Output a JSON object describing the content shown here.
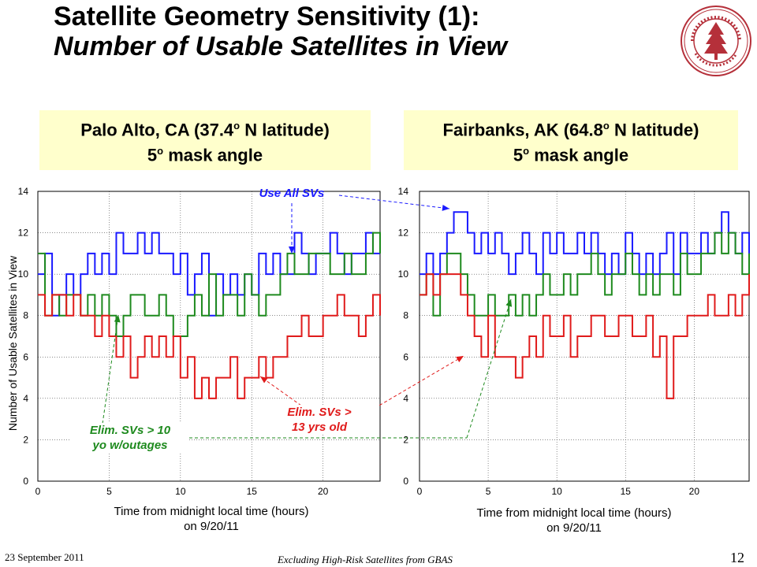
{
  "title": {
    "line1": "Satellite Geometry Sensitivity (1):",
    "line2": "Number of Usable Satellites in View"
  },
  "note_left": {
    "line1_pre": "Palo Alto, CA (37.4",
    "line1_sup": "o",
    "line1_post": " N latitude)",
    "line2_pre": "5",
    "line2_sup": "o",
    "line2_post": " mask angle"
  },
  "note_right": {
    "line1_pre": "Fairbanks, AK (64.8",
    "line1_sup": "o",
    "line1_post": " N latitude)",
    "line2_pre": "5",
    "line2_sup": "o",
    "line2_post": " mask angle"
  },
  "ylabel": "Number of Usable Satellites in View",
  "xlabel_left": {
    "line1": "Time from midnight local time (hours)",
    "line2": "on 9/20/11"
  },
  "xlabel_right": {
    "line1": "Time from midnight local time (hours)",
    "line2": "on 9/20/11"
  },
  "callouts": {
    "all": "Use All SVs",
    "green_line1": "Elim. SVs > 10",
    "green_line2": "yo w/outages",
    "red_line1": "Elim. SVs >",
    "red_line2": "13 yrs old"
  },
  "footer": {
    "date": "23 September 2011",
    "title": "Excluding High-Risk Satellites from GBAS",
    "page": "12"
  },
  "colors": {
    "all": "#1a1aff",
    "green": "#1e8a1e",
    "red": "#e01b1b",
    "note_bg": "#ffffcc",
    "seal": "#b5303a"
  },
  "chart_data": [
    {
      "type": "line",
      "title": "",
      "xlabel": "Time from midnight local time (hours) on 9/20/11",
      "ylabel": "Number of Usable Satellites in View",
      "xlim": [
        0,
        24
      ],
      "ylim": [
        0,
        14
      ],
      "xticks": [
        0,
        5,
        10,
        15,
        20
      ],
      "yticks": [
        0,
        2,
        4,
        6,
        8,
        10,
        12,
        14
      ],
      "grid": true,
      "series": [
        {
          "name": "Use All SVs",
          "color": "#1a1aff",
          "x": [
            0,
            0.5,
            1,
            1.5,
            2,
            2.5,
            3,
            3.5,
            4,
            4.5,
            5,
            5.5,
            6,
            6.5,
            7,
            7.5,
            8,
            8.5,
            9,
            9.5,
            10,
            10.5,
            11,
            11.5,
            12,
            12.5,
            13,
            13.5,
            14,
            14.5,
            15,
            15.5,
            16,
            16.5,
            17,
            17.5,
            18,
            18.5,
            19,
            19.5,
            20,
            20.5,
            21,
            21.5,
            22,
            22.5,
            23,
            23.5,
            24
          ],
          "y": [
            10,
            11,
            8,
            9,
            10,
            9,
            10,
            11,
            10,
            11,
            10,
            12,
            11,
            11,
            12,
            11,
            12,
            11,
            11,
            10,
            11,
            9,
            10,
            11,
            8,
            10,
            9,
            10,
            9,
            10,
            9,
            11,
            10,
            11,
            10,
            10,
            12,
            11,
            10,
            11,
            11,
            12,
            11,
            10,
            11,
            11,
            12,
            11,
            11
          ]
        },
        {
          "name": "Elim. SVs > 10 yo w/outages",
          "color": "#1e8a1e",
          "x": [
            0,
            0.5,
            1,
            1.5,
            2,
            2.5,
            3,
            3.5,
            4,
            4.5,
            5,
            5.5,
            6,
            6.5,
            7,
            7.5,
            8,
            8.5,
            9,
            9.5,
            10,
            10.5,
            11,
            11.5,
            12,
            12.5,
            13,
            13.5,
            14,
            14.5,
            15,
            15.5,
            16,
            16.5,
            17,
            17.5,
            18,
            18.5,
            19,
            19.5,
            20,
            20.5,
            21,
            21.5,
            22,
            22.5,
            23,
            23.5,
            24
          ],
          "y": [
            11,
            8,
            9,
            8,
            9,
            9,
            8,
            9,
            8,
            9,
            8,
            7,
            8,
            9,
            9,
            8,
            8,
            9,
            8,
            7,
            7,
            8,
            9,
            8,
            10,
            8,
            9,
            9,
            8,
            10,
            9,
            8,
            9,
            9,
            10,
            11,
            10,
            10,
            11,
            11,
            11,
            10,
            10,
            11,
            10,
            10,
            11,
            12,
            11
          ]
        },
        {
          "name": "Elim. SVs > 13 yrs old",
          "color": "#e01b1b",
          "x": [
            0,
            0.5,
            1,
            1.5,
            2,
            2.5,
            3,
            3.5,
            4,
            4.5,
            5,
            5.5,
            6,
            6.5,
            7,
            7.5,
            8,
            8.5,
            9,
            9.5,
            10,
            10.5,
            11,
            11.5,
            12,
            12.5,
            13,
            13.5,
            14,
            14.5,
            15,
            15.5,
            16,
            16.5,
            17,
            17.5,
            18,
            18.5,
            19,
            19.5,
            20,
            20.5,
            21,
            21.5,
            22,
            22.5,
            23,
            23.5,
            24
          ],
          "y": [
            9,
            8,
            9,
            9,
            8,
            9,
            8,
            8,
            7,
            8,
            7,
            6,
            7,
            5,
            6,
            7,
            6,
            7,
            6,
            7,
            5,
            6,
            4,
            5,
            4,
            5,
            5,
            6,
            4,
            5,
            5,
            6,
            5,
            6,
            6,
            7,
            7,
            8,
            7,
            7,
            8,
            8,
            9,
            8,
            8,
            7,
            8,
            9,
            8
          ]
        }
      ]
    },
    {
      "type": "line",
      "title": "",
      "xlabel": "Time from midnight local time (hours) on 9/20/11",
      "ylabel": "",
      "xlim": [
        0,
        24
      ],
      "ylim": [
        0,
        14
      ],
      "xticks": [
        0,
        5,
        10,
        15,
        20
      ],
      "yticks": [
        0,
        2,
        4,
        6,
        8,
        10,
        12,
        14
      ],
      "grid": true,
      "series": [
        {
          "name": "Use All SVs",
          "color": "#1a1aff",
          "x": [
            0,
            0.5,
            1,
            1.5,
            2,
            2.5,
            3,
            3.5,
            4,
            4.5,
            5,
            5.5,
            6,
            6.5,
            7,
            7.5,
            8,
            8.5,
            9,
            9.5,
            10,
            10.5,
            11,
            11.5,
            12,
            12.5,
            13,
            13.5,
            14,
            14.5,
            15,
            15.5,
            16,
            16.5,
            17,
            17.5,
            18,
            18.5,
            19,
            19.5,
            20,
            20.5,
            21,
            21.5,
            22,
            22.5,
            23,
            23.5,
            24
          ],
          "y": [
            10,
            11,
            10,
            11,
            12,
            13,
            13,
            12,
            11,
            12,
            11,
            12,
            11,
            10,
            11,
            12,
            11,
            10,
            12,
            11,
            12,
            11,
            11,
            12,
            11,
            12,
            11,
            10,
            11,
            10,
            12,
            11,
            10,
            11,
            10,
            11,
            12,
            10,
            12,
            11,
            11,
            12,
            11,
            12,
            13,
            12,
            11,
            12,
            11
          ]
        },
        {
          "name": "Elim. SVs > 10 yo w/outages",
          "color": "#1e8a1e",
          "x": [
            0,
            0.5,
            1,
            1.5,
            2,
            2.5,
            3,
            3.5,
            4,
            4.5,
            5,
            5.5,
            6,
            6.5,
            7,
            7.5,
            8,
            8.5,
            9,
            9.5,
            10,
            10.5,
            11,
            11.5,
            12,
            12.5,
            13,
            13.5,
            14,
            14.5,
            15,
            15.5,
            16,
            16.5,
            17,
            17.5,
            18,
            18.5,
            19,
            19.5,
            20,
            20.5,
            21,
            21.5,
            22,
            22.5,
            23,
            23.5,
            24
          ],
          "y": [
            9,
            10,
            8,
            10,
            11,
            11,
            10,
            9,
            8,
            8,
            9,
            8,
            8,
            9,
            8,
            9,
            8,
            9,
            10,
            9,
            9,
            10,
            9,
            10,
            10,
            11,
            10,
            9,
            10,
            10,
            11,
            10,
            9,
            10,
            9,
            10,
            10,
            9,
            11,
            10,
            10,
            11,
            11,
            12,
            11,
            12,
            11,
            10,
            11
          ]
        },
        {
          "name": "Elim. SVs > 13 yrs old",
          "color": "#e01b1b",
          "x": [
            0,
            0.5,
            1,
            1.5,
            2,
            2.5,
            3,
            3.5,
            4,
            4.5,
            5,
            5.5,
            6,
            6.5,
            7,
            7.5,
            8,
            8.5,
            9,
            9.5,
            10,
            10.5,
            11,
            11.5,
            12,
            12.5,
            13,
            13.5,
            14,
            14.5,
            15,
            15.5,
            16,
            16.5,
            17,
            17.5,
            18,
            18.5,
            19,
            19.5,
            20,
            20.5,
            21,
            21.5,
            22,
            22.5,
            23,
            23.5,
            24
          ],
          "y": [
            9,
            10,
            9,
            10,
            10,
            10,
            9,
            8,
            7,
            6,
            8,
            6,
            6,
            6,
            5,
            6,
            7,
            6,
            8,
            7,
            7,
            8,
            6,
            7,
            7,
            8,
            8,
            7,
            7,
            8,
            8,
            7,
            7,
            8,
            6,
            7,
            4,
            7,
            7,
            8,
            8,
            8,
            9,
            8,
            8,
            9,
            8,
            9,
            10
          ]
        }
      ]
    }
  ]
}
